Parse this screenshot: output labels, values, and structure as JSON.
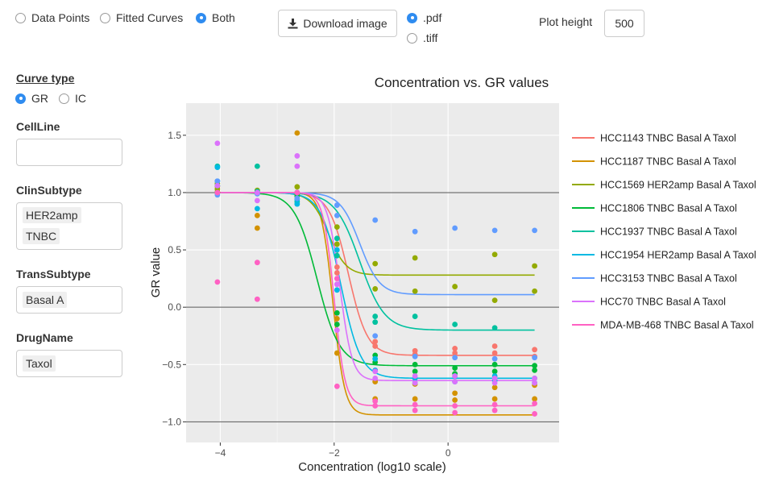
{
  "display_options": {
    "items": [
      "Data Points",
      "Fitted Curves",
      "Both"
    ],
    "selected": 2
  },
  "download": {
    "button_label": "Download image",
    "formats": [
      ".pdf",
      ".tiff"
    ],
    "selected": 0
  },
  "plot_height": {
    "label": "Plot height",
    "value": "500"
  },
  "curve_type": {
    "label": "Curve type",
    "items": [
      "GR",
      "IC"
    ],
    "selected": 0
  },
  "filters": {
    "cellline": {
      "label": "CellLine",
      "tags": []
    },
    "clinsubtype": {
      "label": "ClinSubtype",
      "tags": [
        "HER2amp",
        "TNBC"
      ]
    },
    "transsubtype": {
      "label": "TransSubtype",
      "tags": [
        "Basal A"
      ]
    },
    "drugname": {
      "label": "DrugName",
      "tags": [
        "Taxol"
      ]
    }
  },
  "chart_data": {
    "type": "scatter",
    "title": "Concentration vs. GR values",
    "xlabel": "Concentration (log10 scale)",
    "ylabel": "GR value",
    "xlim": [
      -4.6,
      1.95
    ],
    "ylim": [
      -1.18,
      1.78
    ],
    "xticks": [
      -4,
      -2,
      0
    ],
    "xtick_labels": [
      "−4",
      "−2",
      "0"
    ],
    "yticks": [
      1.5,
      1.0,
      0.5,
      0.0,
      -0.5,
      -1.0
    ],
    "ytick_labels": [
      "1.5",
      "1.0",
      "0.5",
      "0.0",
      "−0.5",
      "−1.0"
    ],
    "reference_lines_y": [
      1.0,
      0.0,
      -1.0
    ],
    "grid": true,
    "legend_position": "right",
    "x_concentrations": [
      -4.05,
      -3.35,
      -2.65,
      -1.95,
      -1.28,
      -0.58,
      0.12,
      0.82,
      1.52
    ],
    "series": [
      {
        "name": "HCC1143 TNBC Basal A Taxol",
        "color": "#F8766D",
        "fit": {
          "ginf": -0.42,
          "ec50": -1.75,
          "h": 2.6
        },
        "points": [
          [
            -4.05,
            1.01
          ],
          [
            -4.05,
            1.05
          ],
          [
            -3.35,
            1.0
          ],
          [
            -2.65,
            1.0
          ],
          [
            -2.65,
            0.95
          ],
          [
            -1.95,
            0.3
          ],
          [
            -1.95,
            0.2
          ],
          [
            -1.95,
            0.35
          ],
          [
            -1.28,
            -0.3
          ],
          [
            -1.28,
            -0.34
          ],
          [
            -0.58,
            -0.38
          ],
          [
            -0.58,
            -0.41
          ],
          [
            0.12,
            -0.36
          ],
          [
            0.12,
            -0.4
          ],
          [
            0.82,
            -0.34
          ],
          [
            0.82,
            -0.4
          ],
          [
            1.52,
            -0.37
          ],
          [
            1.52,
            -0.43
          ]
        ]
      },
      {
        "name": "HCC1187 TNBC Basal A Taxol",
        "color": "#D39200",
        "fit": {
          "ginf": -0.94,
          "ec50": -2.02,
          "h": 4.2
        },
        "points": [
          [
            -4.05,
            1.0
          ],
          [
            -4.05,
            1.0
          ],
          [
            -3.35,
            0.69
          ],
          [
            -3.35,
            0.8
          ],
          [
            -2.65,
            1.52
          ],
          [
            -2.65,
            1.0
          ],
          [
            -1.95,
            -0.4
          ],
          [
            -1.95,
            -0.1
          ],
          [
            -1.28,
            -0.8
          ],
          [
            -1.28,
            -0.65
          ],
          [
            -0.58,
            -0.8
          ],
          [
            -0.58,
            -0.67
          ],
          [
            0.12,
            -0.75
          ],
          [
            0.12,
            -0.81
          ],
          [
            0.82,
            -0.8
          ],
          [
            0.82,
            -0.7
          ],
          [
            1.52,
            -0.8
          ],
          [
            1.52,
            -0.68
          ]
        ]
      },
      {
        "name": "HCC1569 HER2amp Basal A Taxol",
        "color": "#93AA00",
        "fit": {
          "ginf": 0.28,
          "ec50": -2.1,
          "h": 2.8
        },
        "points": [
          [
            -4.05,
            1.08
          ],
          [
            -4.05,
            1.03
          ],
          [
            -3.35,
            1.02
          ],
          [
            -2.65,
            1.05
          ],
          [
            -2.65,
            0.98
          ],
          [
            -1.95,
            0.55
          ],
          [
            -1.95,
            0.7
          ],
          [
            -1.28,
            0.38
          ],
          [
            -1.28,
            0.16
          ],
          [
            -0.58,
            0.43
          ],
          [
            -0.58,
            0.14
          ],
          [
            0.12,
            0.18
          ],
          [
            0.82,
            0.46
          ],
          [
            0.82,
            0.06
          ],
          [
            1.52,
            0.36
          ],
          [
            1.52,
            0.14
          ]
        ]
      },
      {
        "name": "HCC1806 TNBC Basal A Taxol",
        "color": "#00BA38",
        "fit": {
          "ginf": -0.51,
          "ec50": -2.3,
          "h": 2.2
        },
        "points": [
          [
            -4.05,
            1.0
          ],
          [
            -4.05,
            1.06
          ],
          [
            -3.35,
            1.0
          ],
          [
            -2.65,
            0.97
          ],
          [
            -1.95,
            -0.05
          ],
          [
            -1.95,
            -0.15
          ],
          [
            -1.28,
            -0.48
          ],
          [
            -1.28,
            -0.42
          ],
          [
            -0.58,
            -0.5
          ],
          [
            -0.58,
            -0.56
          ],
          [
            0.12,
            -0.53
          ],
          [
            0.12,
            -0.58
          ],
          [
            0.82,
            -0.5
          ],
          [
            0.82,
            -0.56
          ],
          [
            1.52,
            -0.51
          ],
          [
            1.52,
            -0.55
          ]
        ]
      },
      {
        "name": "HCC1937 TNBC Basal A Taxol",
        "color": "#00C19F",
        "fit": {
          "ginf": -0.2,
          "ec50": -1.55,
          "h": 2.0
        },
        "points": [
          [
            -4.05,
            1.23
          ],
          [
            -4.05,
            1.06
          ],
          [
            -3.35,
            1.23
          ],
          [
            -3.35,
            1.01
          ],
          [
            -2.65,
            1.0
          ],
          [
            -2.65,
            0.92
          ],
          [
            -1.95,
            0.6
          ],
          [
            -1.95,
            0.45
          ],
          [
            -1.28,
            -0.08
          ],
          [
            -1.28,
            -0.13
          ],
          [
            -0.58,
            -0.08
          ],
          [
            0.12,
            -0.15
          ],
          [
            0.82,
            -0.18
          ]
        ]
      },
      {
        "name": "HCC1954 HER2amp Basal A Taxol",
        "color": "#00B9E3",
        "fit": {
          "ginf": -0.62,
          "ec50": -1.88,
          "h": 2.5
        },
        "points": [
          [
            -4.05,
            1.22
          ],
          [
            -4.05,
            1.1
          ],
          [
            -3.35,
            0.99
          ],
          [
            -3.35,
            0.86
          ],
          [
            -2.65,
            0.9
          ],
          [
            -2.65,
            0.94
          ],
          [
            -1.95,
            0.5
          ],
          [
            -1.95,
            0.15
          ],
          [
            -1.28,
            -0.45
          ],
          [
            -1.28,
            -0.55
          ],
          [
            -0.58,
            -0.62
          ],
          [
            -0.58,
            -0.66
          ],
          [
            0.12,
            -0.6
          ],
          [
            0.12,
            -0.65
          ],
          [
            0.82,
            -0.6
          ],
          [
            0.82,
            -0.64
          ],
          [
            1.52,
            -0.62
          ],
          [
            1.52,
            -0.66
          ]
        ]
      },
      {
        "name": "HCC3153 TNBC Basal A Taxol",
        "color": "#619CFF",
        "fit": {
          "ginf": 0.11,
          "ec50": -1.55,
          "h": 2.5
        },
        "points": [
          [
            -4.05,
            1.1
          ],
          [
            -4.05,
            0.98
          ],
          [
            -3.35,
            0.99
          ],
          [
            -2.65,
            1.0
          ],
          [
            -2.65,
            0.95
          ],
          [
            -1.95,
            0.89
          ],
          [
            -1.95,
            0.8
          ],
          [
            -1.28,
            0.76
          ],
          [
            -1.28,
            -0.25
          ],
          [
            -0.58,
            0.66
          ],
          [
            -0.58,
            -0.43
          ],
          [
            0.12,
            0.69
          ],
          [
            0.12,
            -0.44
          ],
          [
            0.82,
            0.67
          ],
          [
            0.82,
            -0.45
          ],
          [
            1.52,
            0.67
          ],
          [
            1.52,
            -0.44
          ]
        ]
      },
      {
        "name": "HCC70 TNBC Basal A Taxol",
        "color": "#DB72FB",
        "fit": {
          "ginf": -0.64,
          "ec50": -1.9,
          "h": 4.0
        },
        "points": [
          [
            -4.05,
            1.43
          ],
          [
            -4.05,
            1.06
          ],
          [
            -3.35,
            0.93
          ],
          [
            -3.35,
            1.0
          ],
          [
            -2.65,
            1.32
          ],
          [
            -2.65,
            1.23
          ],
          [
            -1.95,
            0.2
          ],
          [
            -1.95,
            -0.2
          ],
          [
            -1.28,
            -0.56
          ],
          [
            -1.28,
            -0.62
          ],
          [
            -0.58,
            -0.6
          ],
          [
            -0.58,
            -0.66
          ],
          [
            0.12,
            -0.6
          ],
          [
            0.12,
            -0.65
          ],
          [
            0.82,
            -0.62
          ],
          [
            0.82,
            -0.66
          ],
          [
            1.52,
            -0.62
          ],
          [
            1.52,
            -0.66
          ]
        ]
      },
      {
        "name": "MDA-MB-468 TNBC Basal A Taxol",
        "color": "#FF61C3",
        "fit": {
          "ginf": -0.86,
          "ec50": -2.0,
          "h": 4.5
        },
        "points": [
          [
            -4.05,
            0.22
          ],
          [
            -4.05,
            1.0
          ],
          [
            -3.35,
            0.39
          ],
          [
            -3.35,
            0.07
          ],
          [
            -2.65,
            1.0
          ],
          [
            -1.95,
            -0.69
          ],
          [
            -1.95,
            0.25
          ],
          [
            -1.28,
            -0.86
          ],
          [
            -1.28,
            -0.82
          ],
          [
            -0.58,
            -0.9
          ],
          [
            -0.58,
            -0.85
          ],
          [
            0.12,
            -0.86
          ],
          [
            0.12,
            -0.92
          ],
          [
            0.82,
            -0.85
          ],
          [
            0.82,
            -0.9
          ],
          [
            1.52,
            -0.84
          ],
          [
            1.52,
            -0.93
          ]
        ]
      }
    ]
  }
}
